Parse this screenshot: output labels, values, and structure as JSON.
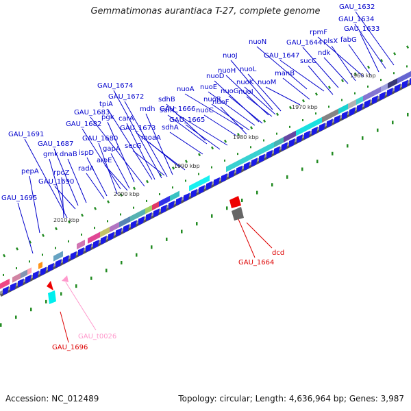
{
  "title": "Gemmatimonas aurantiaca T-27, complete genome",
  "footer": {
    "accession": "Accession: NC_012489",
    "summary": "Topology: circular; Length: 4,636,964 bp; Genes: 3,987"
  },
  "colors": {
    "forward_gene": "#1a1ae6",
    "gene_label": "#0000cc",
    "pseudo_label": "#dd0000",
    "trna_label": "#ff99cc",
    "tick": "#228b22",
    "backbone": "#999999"
  },
  "kbp_ticks": [
    "1960 kbp",
    "1970 kbp",
    "1980 kbp",
    "1990 kbp",
    "2000 kbp",
    "2010 kbp"
  ],
  "gene_labels": [
    "GAU_1632",
    "GAU_1634",
    "GAU_1633",
    "rpmF",
    "fabG",
    "plsX",
    "ndk",
    "GAU_1644",
    "nuoN",
    "GAU_1647",
    "sucC",
    "manB",
    "nuoJ",
    "nuoH",
    "nuoL",
    "nuoK",
    "nuoM",
    "nuoI",
    "nuoD",
    "nuoE",
    "nuoA",
    "nuoG",
    "nuoB",
    "nuoF",
    "nuoC",
    "GAU_1674",
    "GAU_1672",
    "sdhB",
    "sdhC",
    "GAU_1666",
    "GAU_1665",
    "sdhA",
    "tpiA",
    "mdh",
    "GAU_1683",
    "pgk",
    "carA",
    "GAU_1682",
    "GAU_1673",
    "moaA",
    "GAU_1680",
    "secG",
    "ispD",
    "gapA",
    "aroE",
    "GAU_1691",
    "GAU_1687",
    "gmk",
    "dnaB",
    "radA",
    "pepA",
    "rpoZ",
    "GAU_1690",
    "GAU_1695"
  ],
  "red_labels": [
    "dcd",
    "GAU_1664",
    "GAU_1696"
  ],
  "pink_labels": [
    "GAU_t0026"
  ]
}
